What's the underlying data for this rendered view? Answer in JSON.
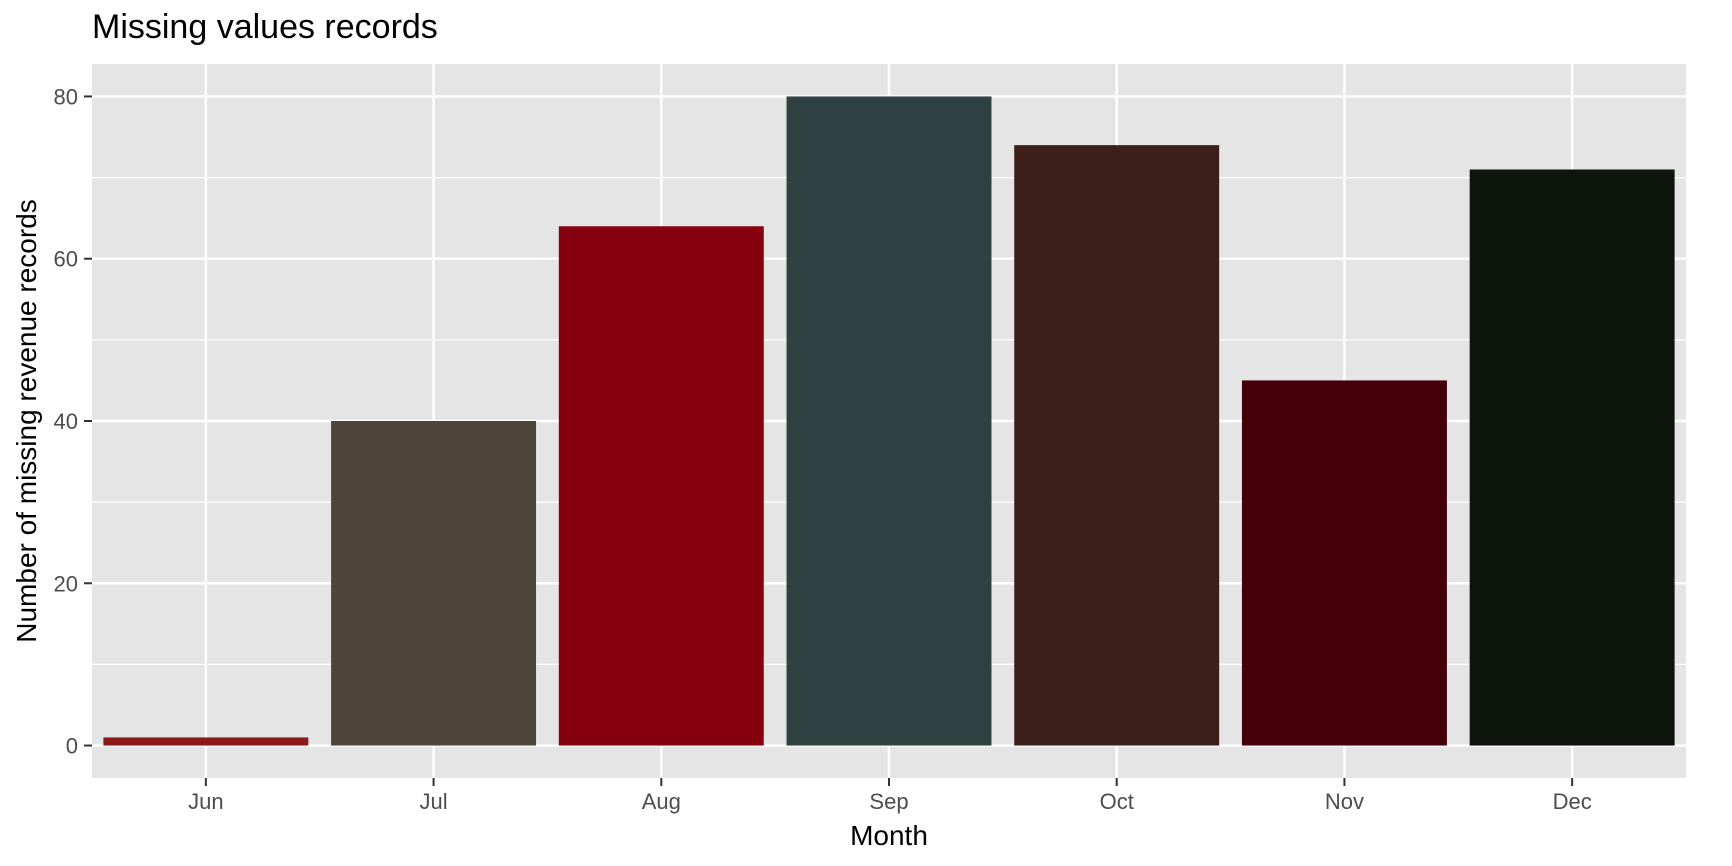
{
  "chart_data": {
    "type": "bar",
    "title": "Missing values records",
    "xlabel": "Month",
    "ylabel": "Number of missing revenue records",
    "categories": [
      "Jun",
      "Jul",
      "Aug",
      "Sep",
      "Oct",
      "Nov",
      "Dec"
    ],
    "values": [
      1,
      40,
      64,
      80,
      74,
      45,
      71
    ],
    "colors": [
      "#8B1A1A",
      "#4D4538",
      "#85000F",
      "#304142",
      "#3C1F19",
      "#43000A",
      "#0E150C"
    ],
    "ylim": [
      -4,
      84
    ],
    "yticks": [
      0,
      20,
      40,
      60,
      80
    ],
    "grid": true,
    "legend": "none",
    "panel_background": "#E5E5E5",
    "grid_color": "#FFFFFF"
  }
}
